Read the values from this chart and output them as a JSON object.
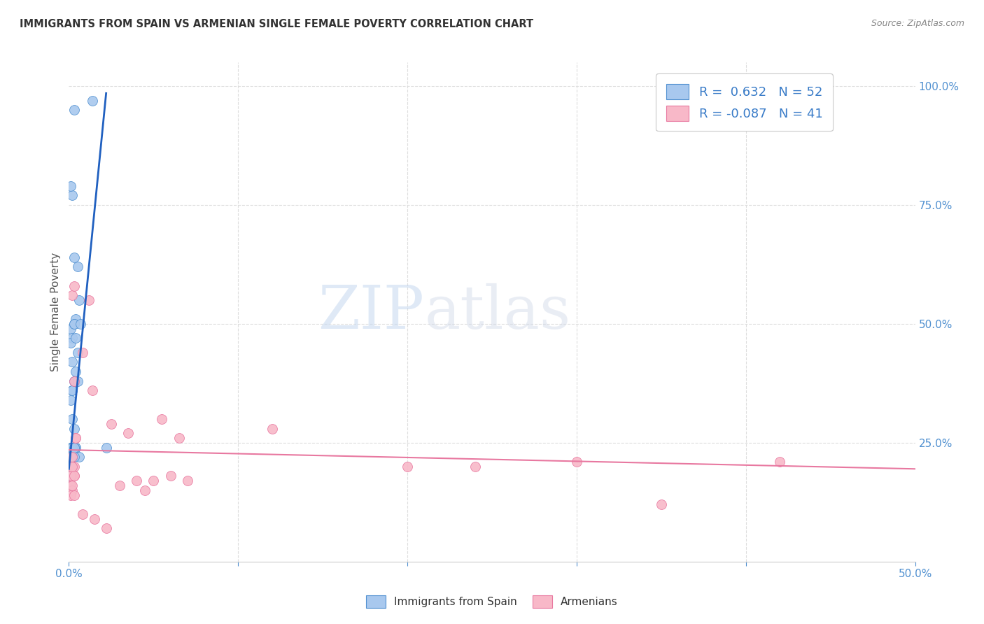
{
  "title": "IMMIGRANTS FROM SPAIN VS ARMENIAN SINGLE FEMALE POVERTY CORRELATION CHART",
  "source": "Source: ZipAtlas.com",
  "ylabel": "Single Female Poverty",
  "xlim": [
    0.0,
    0.5
  ],
  "ylim": [
    0.0,
    1.05
  ],
  "xtick_positions": [
    0.0,
    0.1,
    0.2,
    0.3,
    0.4,
    0.5
  ],
  "xticklabels": [
    "0.0%",
    "",
    "",
    "",
    "",
    "50.0%"
  ],
  "ytick_positions": [
    0.0,
    0.25,
    0.5,
    0.75,
    1.0
  ],
  "yticklabels_right": [
    "",
    "25.0%",
    "50.0%",
    "75.0%",
    "100.0%"
  ],
  "legend_blue_label": "R =  0.632   N = 52",
  "legend_pink_label": "R = -0.087   N = 41",
  "legend_labels": [
    "Immigrants from Spain",
    "Armenians"
  ],
  "blue_color": "#A8C8EE",
  "pink_color": "#F8B8C8",
  "blue_edge_color": "#5090D0",
  "pink_edge_color": "#E878A0",
  "blue_line_color": "#2060C0",
  "pink_line_color": "#E878A0",
  "watermark_zip": "ZIP",
  "watermark_atlas": "atlas",
  "blue_scatter_x": [
    0.003,
    0.005,
    0.002,
    0.003,
    0.004,
    0.001,
    0.002,
    0.003,
    0.001,
    0.004,
    0.005,
    0.002,
    0.003,
    0.006,
    0.002,
    0.003,
    0.001,
    0.002,
    0.004,
    0.003,
    0.005,
    0.007,
    0.002,
    0.003,
    0.001,
    0.004,
    0.002,
    0.003,
    0.001,
    0.002,
    0.006,
    0.001,
    0.003,
    0.002,
    0.001,
    0.004,
    0.002,
    0.001,
    0.003,
    0.002,
    0.001,
    0.002,
    0.003,
    0.001,
    0.002,
    0.001,
    0.001,
    0.003,
    0.002,
    0.001,
    0.014,
    0.022
  ],
  "blue_scatter_y": [
    0.95,
    0.62,
    0.77,
    0.64,
    0.51,
    0.49,
    0.47,
    0.5,
    0.46,
    0.47,
    0.44,
    0.42,
    0.5,
    0.55,
    0.36,
    0.38,
    0.34,
    0.36,
    0.4,
    0.38,
    0.38,
    0.5,
    0.3,
    0.28,
    0.79,
    0.24,
    0.24,
    0.24,
    0.2,
    0.2,
    0.22,
    0.24,
    0.24,
    0.24,
    0.24,
    0.24,
    0.24,
    0.22,
    0.22,
    0.2,
    0.24,
    0.22,
    0.24,
    0.22,
    0.24,
    0.2,
    0.18,
    0.24,
    0.18,
    0.16,
    0.97,
    0.24
  ],
  "pink_scatter_x": [
    0.001,
    0.002,
    0.003,
    0.001,
    0.002,
    0.001,
    0.003,
    0.002,
    0.002,
    0.003,
    0.004,
    0.004,
    0.003,
    0.008,
    0.012,
    0.014,
    0.025,
    0.035,
    0.055,
    0.065,
    0.12,
    0.2,
    0.24,
    0.3,
    0.35,
    0.42,
    0.001,
    0.002,
    0.003,
    0.001,
    0.002,
    0.003,
    0.008,
    0.015,
    0.022,
    0.03,
    0.04,
    0.045,
    0.05,
    0.06,
    0.07
  ],
  "pink_scatter_y": [
    0.2,
    0.18,
    0.2,
    0.16,
    0.22,
    0.16,
    0.18,
    0.15,
    0.56,
    0.38,
    0.26,
    0.26,
    0.58,
    0.44,
    0.55,
    0.36,
    0.29,
    0.27,
    0.3,
    0.26,
    0.28,
    0.2,
    0.2,
    0.21,
    0.12,
    0.21,
    0.18,
    0.16,
    0.18,
    0.14,
    0.2,
    0.14,
    0.1,
    0.09,
    0.07,
    0.16,
    0.17,
    0.15,
    0.17,
    0.18,
    0.17
  ],
  "blue_trend_x": [
    0.0,
    0.022
  ],
  "blue_trend_y": [
    0.195,
    0.985
  ],
  "pink_trend_x": [
    0.0,
    0.5
  ],
  "pink_trend_y": [
    0.235,
    0.195
  ],
  "grid_color": "#DDDDDD",
  "background_color": "#FFFFFF"
}
